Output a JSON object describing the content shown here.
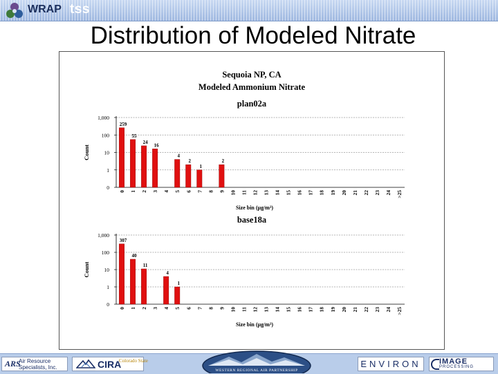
{
  "header": {
    "logo_text": "WRAP",
    "logo_suffix": "tss"
  },
  "slide_title": "Distribution of Modeled Nitrate",
  "footer": {
    "ars_line1": "Air Resource",
    "ars_line2": "Specialists, Inc.",
    "cira_text": "CIRA",
    "csu_text": "Colorado State",
    "wrap_seal_text": "WESTERN REGIONAL AIR PARTNERSHIP",
    "environ_text": "ENVIRON",
    "image_text": "IMAGE",
    "image_subtext": "PROCESSING"
  },
  "colors": {
    "bar": "#e01010",
    "bar_stroke": "#8a0000",
    "grid": "#9a9a9a",
    "header_bg": "#a9c2e6",
    "footer_bg": "#b9cdea"
  },
  "chart_data": {
    "type": "bar",
    "title_line1": "Sequoia NP, CA",
    "title_line2": "Modeled Ammonium Nitrate",
    "yscale": "log",
    "ylabel": "Count",
    "xlabel": "Size bin (μg/m³)",
    "y_ticks": [
      "1,000",
      "100",
      "10",
      "1",
      "0"
    ],
    "categories": [
      "0",
      "1",
      "2",
      "3",
      "4",
      "5",
      "6",
      "7",
      "8",
      "9",
      "10",
      "11",
      "12",
      "13",
      "14",
      "15",
      "16",
      "17",
      "18",
      "19",
      "20",
      "21",
      "22",
      "23",
      "24",
      ">25"
    ],
    "panels": [
      {
        "name": "plan02a",
        "values": [
          259,
          55,
          24,
          16,
          0,
          4,
          2,
          1,
          0,
          2,
          0,
          0,
          0,
          0,
          0,
          0,
          0,
          0,
          0,
          0,
          0,
          0,
          0,
          0,
          0,
          0
        ]
      },
      {
        "name": "base18a",
        "values": [
          307,
          40,
          11,
          0,
          4,
          1,
          0,
          0,
          0,
          0,
          0,
          0,
          0,
          0,
          0,
          0,
          0,
          0,
          0,
          0,
          0,
          0,
          0,
          0,
          0,
          0
        ]
      }
    ]
  }
}
